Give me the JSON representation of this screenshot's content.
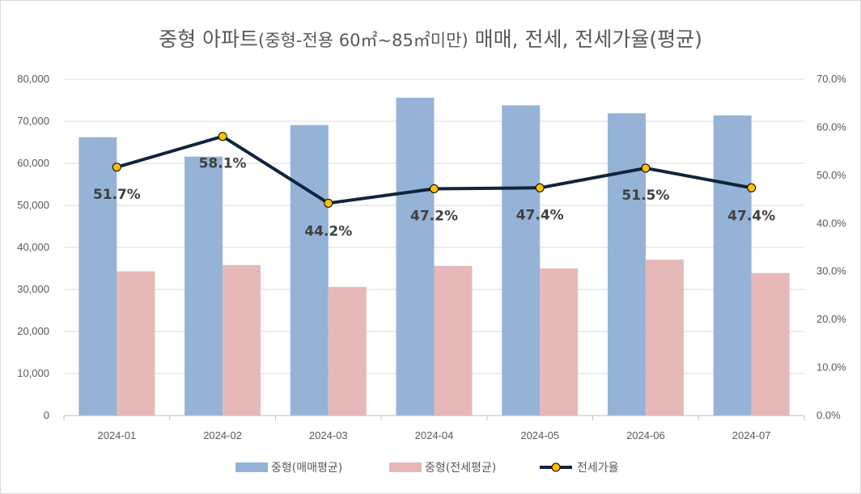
{
  "chart_data": {
    "type": "bar",
    "title": "중형 아파트(중형-전용 60㎡~85㎡미만) 매매, 전세, 전세가율(평균)",
    "title_main": "중형 아파트",
    "title_paren": "(중형-전용 60㎡~85㎡미만)",
    "title_tail": " 매매, 전세, 전세가율(평균)",
    "categories": [
      "2024-01",
      "2024-02",
      "2024-03",
      "2024-04",
      "2024-05",
      "2024-06",
      "2024-07"
    ],
    "series": [
      {
        "name": "중형(매매평균)",
        "type": "bar",
        "axis": "left",
        "color": "#95b3d7",
        "values": [
          66200,
          61600,
          69100,
          75600,
          73800,
          71900,
          71400
        ]
      },
      {
        "name": "중형(전세평균)",
        "type": "bar",
        "axis": "left",
        "color": "#e6b9b8",
        "values": [
          34300,
          35800,
          30600,
          35600,
          35000,
          37100,
          33900
        ]
      },
      {
        "name": "전세가율",
        "type": "line",
        "axis": "right",
        "color": "#0f243e",
        "marker_color": "#ffc000",
        "values": [
          51.7,
          58.1,
          44.2,
          47.2,
          47.4,
          51.5,
          47.4
        ],
        "labels": [
          "51.7%",
          "58.1%",
          "44.2%",
          "47.2%",
          "47.4%",
          "51.5%",
          "47.4%"
        ]
      }
    ],
    "y_left": {
      "min": 0,
      "max": 80000,
      "step": 10000,
      "ticks": [
        "0",
        "10,000",
        "20,000",
        "30,000",
        "40,000",
        "50,000",
        "60,000",
        "70,000",
        "80,000"
      ]
    },
    "y_right": {
      "min": 0,
      "max": 70,
      "step": 10,
      "ticks": [
        "0.0%",
        "10.0%",
        "20.0%",
        "30.0%",
        "40.0%",
        "50.0%",
        "60.0%",
        "70.0%"
      ]
    },
    "grid": true,
    "legend_position": "bottom"
  }
}
